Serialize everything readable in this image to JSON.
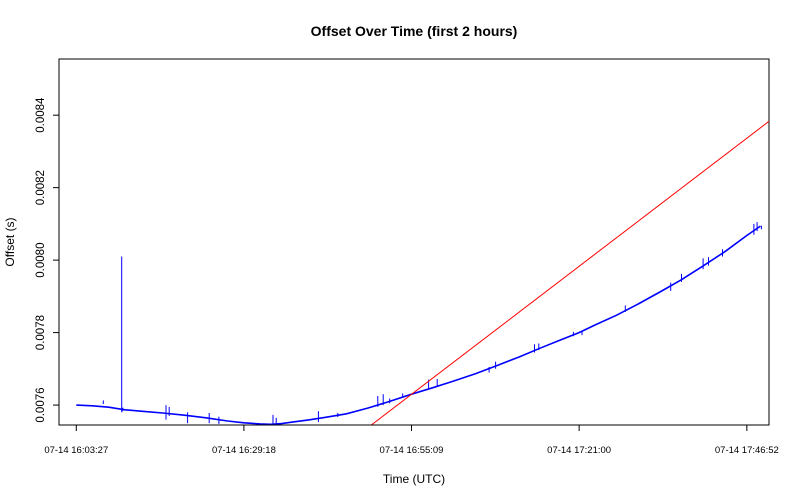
{
  "chart_data": {
    "type": "line",
    "title": "Offset Over Time (first 2 hours)",
    "xlabel": "Time (UTC)",
    "ylabel": "Offset (s)",
    "x_ticks": [
      "07-14 16:03:27",
      "07-14 16:29:18",
      "07-14 16:55:09",
      "07-14 17:21:00",
      "07-14 17:46:52"
    ],
    "x_tick_seconds": [
      0,
      1551,
      3102,
      4653,
      6205
    ],
    "xlim_seconds": [
      -160,
      6410
    ],
    "y_ticks": [
      0.0076,
      0.0078,
      0.008,
      0.0082,
      0.0084
    ],
    "ylim": [
      0.007545,
      0.008555
    ],
    "grid": false,
    "series": [
      {
        "kind": "line",
        "color": "#0000ff",
        "points": [
          [
            0,
            0.0076
          ],
          [
            150,
            0.007598
          ],
          [
            300,
            0.007594
          ],
          [
            450,
            0.007587
          ],
          [
            600,
            0.007583
          ],
          [
            800,
            0.007578
          ],
          [
            1000,
            0.007572
          ],
          [
            1200,
            0.007565
          ],
          [
            1400,
            0.007556
          ],
          [
            1551,
            0.007551
          ],
          [
            1700,
            0.007548
          ],
          [
            1800,
            0.007547
          ],
          [
            1900,
            0.007549
          ],
          [
            2000,
            0.007553
          ],
          [
            2150,
            0.007559
          ],
          [
            2300,
            0.007566
          ],
          [
            2500,
            0.007576
          ],
          [
            2700,
            0.007592
          ],
          [
            2900,
            0.00761
          ],
          [
            3102,
            0.00763
          ],
          [
            3300,
            0.007648
          ],
          [
            3500,
            0.007667
          ],
          [
            3700,
            0.007687
          ],
          [
            3900,
            0.00771
          ],
          [
            4100,
            0.007733
          ],
          [
            4300,
            0.007758
          ],
          [
            4500,
            0.007782
          ],
          [
            4653,
            0.0078
          ],
          [
            4800,
            0.007821
          ],
          [
            5000,
            0.007848
          ],
          [
            5200,
            0.007879
          ],
          [
            5400,
            0.007912
          ],
          [
            5600,
            0.007946
          ],
          [
            5800,
            0.007984
          ],
          [
            6000,
            0.008023
          ],
          [
            6205,
            0.008068
          ],
          [
            6330,
            0.008094
          ]
        ],
        "spikes": [
          [
            250,
            0.007603,
            0.007613
          ],
          [
            420,
            0.00758,
            0.00801
          ],
          [
            430,
            0.007583,
            0.007593
          ],
          [
            830,
            0.00756,
            0.0076
          ],
          [
            860,
            0.00757,
            0.007595
          ],
          [
            1030,
            0.00755,
            0.00758
          ],
          [
            1230,
            0.00755,
            0.007578
          ],
          [
            1320,
            0.007548,
            0.007568
          ],
          [
            1820,
            0.007546,
            0.007573
          ],
          [
            1850,
            0.007547,
            0.007565
          ],
          [
            2240,
            0.007553,
            0.007583
          ],
          [
            2420,
            0.007567,
            0.007578
          ],
          [
            2790,
            0.007595,
            0.007625
          ],
          [
            2840,
            0.0076,
            0.00763
          ],
          [
            2900,
            0.007605,
            0.007618
          ],
          [
            3020,
            0.00762,
            0.007632
          ],
          [
            3260,
            0.007645,
            0.00767
          ],
          [
            3340,
            0.00765,
            0.007672
          ],
          [
            3820,
            0.00769,
            0.007705
          ],
          [
            3880,
            0.0077,
            0.00772
          ],
          [
            4240,
            0.007745,
            0.007768
          ],
          [
            4280,
            0.007752,
            0.00777
          ],
          [
            4600,
            0.00779,
            0.007802
          ],
          [
            4680,
            0.007793,
            0.007805
          ],
          [
            5080,
            0.007857,
            0.007875
          ],
          [
            5500,
            0.007915,
            0.007938
          ],
          [
            5600,
            0.00794,
            0.007962
          ],
          [
            5800,
            0.007975,
            0.008005
          ],
          [
            5850,
            0.007985,
            0.008008
          ],
          [
            5980,
            0.00801,
            0.00803
          ],
          [
            6270,
            0.00807,
            0.0081
          ],
          [
            6300,
            0.00808,
            0.008105
          ],
          [
            6340,
            0.008085,
            0.008095
          ]
        ]
      },
      {
        "kind": "line",
        "color": "#ff0000",
        "points": [
          [
            2730,
            0.007545
          ],
          [
            6410,
            0.008383
          ]
        ]
      }
    ]
  }
}
